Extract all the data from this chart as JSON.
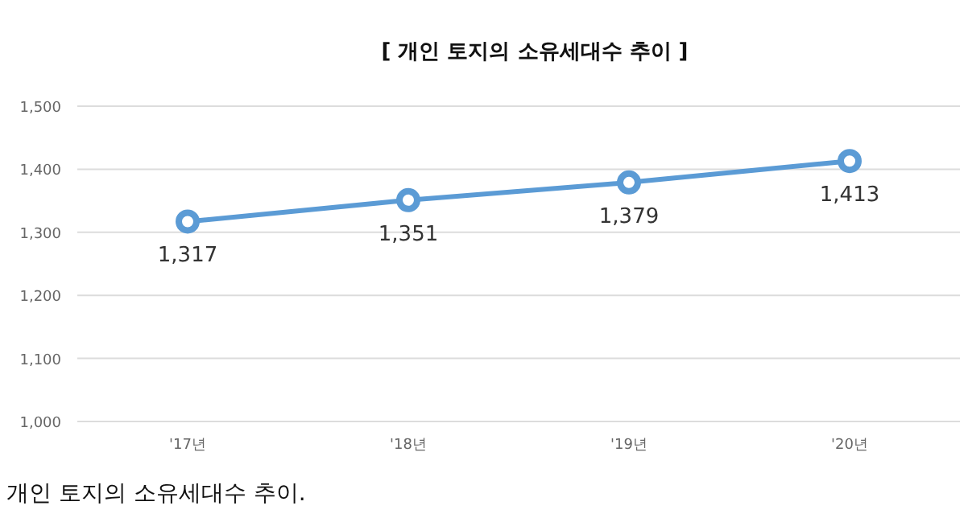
{
  "chart_data": {
    "type": "line",
    "title": "[ 개인 토지의 소유세대수 추이 ]",
    "categories": [
      "'17년",
      "'18년",
      "'19년",
      "'20년"
    ],
    "series": [
      {
        "color": "#5b9bd5",
        "values": [
          1317,
          1351,
          1379,
          1413
        ],
        "value_labels": [
          "1,317",
          "1,351",
          "1,379",
          "1,413"
        ]
      }
    ],
    "ylim": [
      1000,
      1500
    ],
    "yticks": [
      {
        "value": 1000,
        "label": "1,000"
      },
      {
        "value": 1100,
        "label": "1,100"
      },
      {
        "value": 1200,
        "label": "1,200"
      },
      {
        "value": 1300,
        "label": "1,300"
      },
      {
        "value": 1400,
        "label": "1,400"
      },
      {
        "value": 1500,
        "label": "1,500"
      }
    ],
    "grid": "y",
    "marker": "circle",
    "line_style": "solid",
    "annotations": [
      "개인 토지의 소유세대수 추이."
    ]
  }
}
